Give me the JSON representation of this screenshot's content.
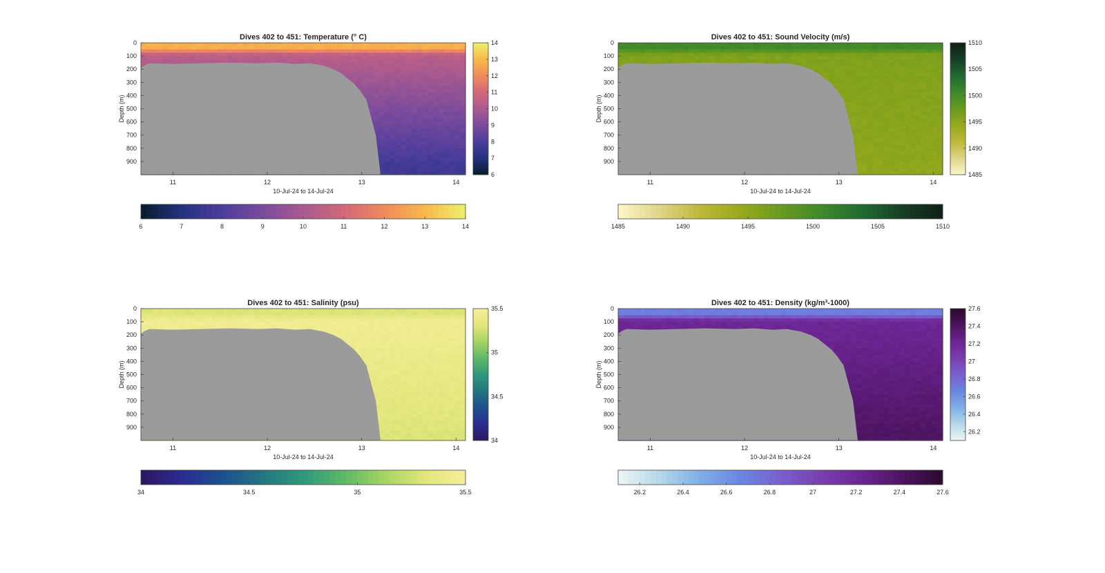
{
  "x_tick_labels": [
    "11",
    "12",
    "13",
    "14"
  ],
  "x_axis_label": "10-Jul-24 to 14-Jul-24",
  "y_axis_label": "Depth (m)",
  "y_tick_labels": [
    "0",
    "100",
    "200",
    "300",
    "400",
    "500",
    "600",
    "700",
    "800",
    "900"
  ],
  "terrain_color": "#9b9b9b",
  "chart_data": [
    {
      "type": "heatmap",
      "id": "temperature",
      "title": "Dives 402 to 451: Temperature (° C)",
      "xlabel": "10-Jul-24 to 14-Jul-24",
      "ylabel": "Depth (m)",
      "x_range": [
        10.66,
        14.1
      ],
      "y_range": [
        0,
        1000
      ],
      "y_reversed": true,
      "colorbar_range": [
        6,
        14
      ],
      "colorbar_ticks": [
        "6",
        "7",
        "8",
        "9",
        "10",
        "11",
        "12",
        "13",
        "14"
      ],
      "colormap": [
        "#071c2b",
        "#23327e",
        "#4d3d9c",
        "#7a4b9c",
        "#a95a8f",
        "#d2687a",
        "#f08a5a",
        "#f8b84a",
        "#ecf06c"
      ],
      "surface_value": 12.8,
      "mixed_layer_value": 10.4,
      "deep_value": 7.7
    },
    {
      "type": "heatmap",
      "id": "sound_velocity",
      "title": "Dives 402 to 451: Sound Velocity (m/s)",
      "xlabel": "10-Jul-24 to 14-Jul-24",
      "ylabel": "Depth (m)",
      "x_range": [
        10.66,
        14.1
      ],
      "y_range": [
        0,
        1000
      ],
      "y_reversed": true,
      "colorbar_range": [
        1485,
        1510
      ],
      "colorbar_ticks": [
        "1485",
        "1490",
        "1495",
        "1500",
        "1505",
        "1510"
      ],
      "colormap": [
        "#fdf6c9",
        "#e0d58a",
        "#c0b83a",
        "#98aa1c",
        "#6a9a1e",
        "#3f8a2a",
        "#216b32",
        "#173f25",
        "#0f1f16"
      ],
      "surface_value": 1500.5,
      "mixed_layer_value": 1496.0,
      "deep_value": 1495.0
    },
    {
      "type": "heatmap",
      "id": "salinity",
      "title": "Dives 402 to 451: Salinity (psu)",
      "xlabel": "10-Jul-24 to 14-Jul-24",
      "ylabel": "Depth (m)",
      "x_range": [
        10.66,
        14.1
      ],
      "y_range": [
        0,
        1000
      ],
      "y_reversed": true,
      "colorbar_range": [
        34,
        35.5
      ],
      "colorbar_ticks": [
        "34",
        "34.5",
        "35",
        "35.5"
      ],
      "colormap": [
        "#2c1660",
        "#2b2b91",
        "#1d4f8f",
        "#237680",
        "#2f987b",
        "#5cb868",
        "#a6d463",
        "#e2e67a",
        "#f6ee9c"
      ],
      "surface_value": 35.3,
      "mixed_layer_value": 35.45,
      "deep_value": 35.3
    },
    {
      "type": "heatmap",
      "id": "density",
      "title": "Dives 402 to 451: Density (kg/m³-1000)",
      "xlabel": "10-Jul-24 to 14-Jul-24",
      "ylabel": "Depth (m)",
      "x_range": [
        10.66,
        14.1
      ],
      "y_range": [
        0,
        1000
      ],
      "y_reversed": true,
      "colorbar_range": [
        26.1,
        27.6
      ],
      "colorbar_ticks": [
        "26.2",
        "26.4",
        "26.6",
        "26.8",
        "27",
        "27.2",
        "27.4",
        "27.6"
      ],
      "colormap": [
        "#eef6f6",
        "#b6d8e8",
        "#7fb0e6",
        "#6b86e0",
        "#7a5fcf",
        "#7a3fae",
        "#6b2592",
        "#4d1460",
        "#2a0a2c"
      ],
      "surface_value": 26.7,
      "mixed_layer_value": 27.2,
      "deep_value": 27.4
    }
  ]
}
